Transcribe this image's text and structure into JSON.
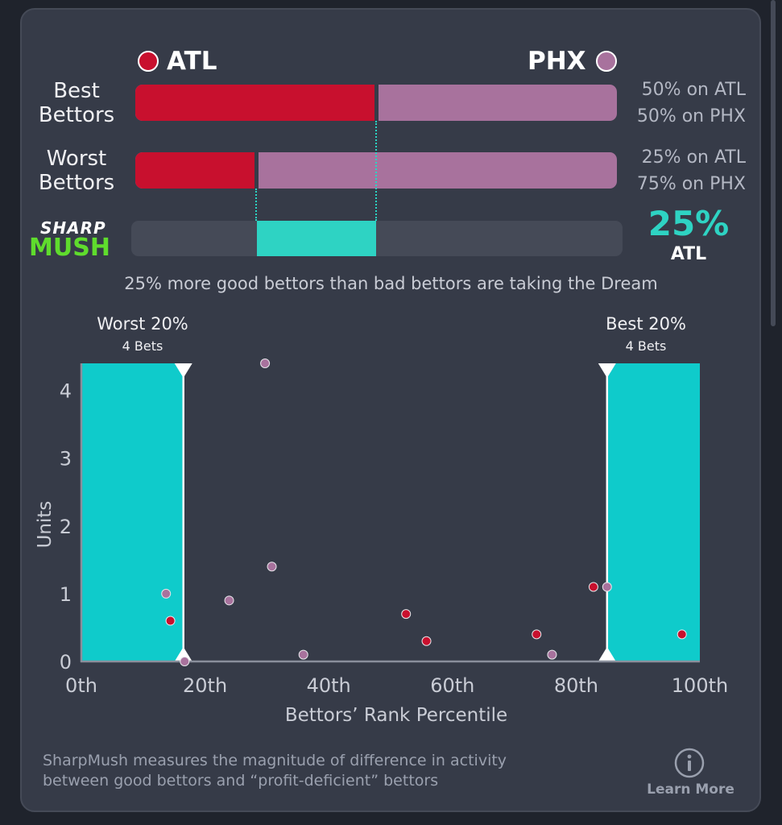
{
  "teams": {
    "a": {
      "name": "ATL",
      "color": "#c8102e"
    },
    "b": {
      "name": "PHX",
      "color": "#a8729d"
    }
  },
  "rows": [
    {
      "label_line1": "Best",
      "label_line2": "Bettors",
      "pct_a": 50,
      "pct_b": 50,
      "text_a": "50% on ATL",
      "text_b": "50% on PHX"
    },
    {
      "label_line1": "Worst",
      "label_line2": "Bettors",
      "pct_a": 25,
      "pct_b": 75,
      "text_a": "25% on ATL",
      "text_b": "75% on PHX"
    }
  ],
  "logo": {
    "line1": "SHARP",
    "line2": "MUSH"
  },
  "mush": {
    "value_text": "25%",
    "team": "ATL",
    "from_pct": 25,
    "to_pct": 50,
    "color": "#2ed3c3"
  },
  "summary": "25% more good bettors than bad bettors are taking the Dream",
  "bands": {
    "worst": {
      "title": "Worst 20%",
      "sub": "4 Bets"
    },
    "best": {
      "title": "Best 20%",
      "sub": "4 Bets"
    }
  },
  "footer": {
    "line1": "SharpMush measures the magnitude of difference in activity",
    "line2": "between good bettors and “profit-deficient” bettors",
    "learn_more": "Learn More",
    "info_icon": "info-icon"
  },
  "chart_data": {
    "type": "scatter",
    "xlabel": "Bettors’ Rank Percentile",
    "ylabel": "Units",
    "xlim": [
      0,
      100
    ],
    "ylim": [
      0,
      4.4
    ],
    "x_ticks": [
      0,
      20,
      40,
      60,
      80,
      100
    ],
    "x_tick_labels": [
      "0th",
      "20th",
      "40th",
      "60th",
      "80th",
      "100th"
    ],
    "y_ticks": [
      0,
      1,
      2,
      3,
      4
    ],
    "y_tick_labels": [
      "0",
      "1",
      "2",
      "3",
      "4"
    ],
    "bands": [
      {
        "name": "Worst 20%",
        "x_from": 0,
        "x_to": 16.5
      },
      {
        "name": "Best 20%",
        "x_from": 85,
        "x_to": 100
      }
    ],
    "series": [
      {
        "name": "ATL",
        "color": "#c8102e",
        "x": [
          14.4,
          52.5,
          55.8,
          73.6,
          82.8,
          97.1
        ],
        "y": [
          0.6,
          0.7,
          0.3,
          0.4,
          1.1,
          0.4
        ]
      },
      {
        "name": "PHX",
        "color": "#a8729d",
        "x": [
          13.7,
          16.7,
          23.9,
          29.7,
          30.8,
          35.9,
          76.1,
          85.0
        ],
        "y": [
          1.0,
          0.0,
          0.9,
          4.4,
          1.4,
          0.1,
          0.1,
          1.1
        ]
      }
    ]
  }
}
